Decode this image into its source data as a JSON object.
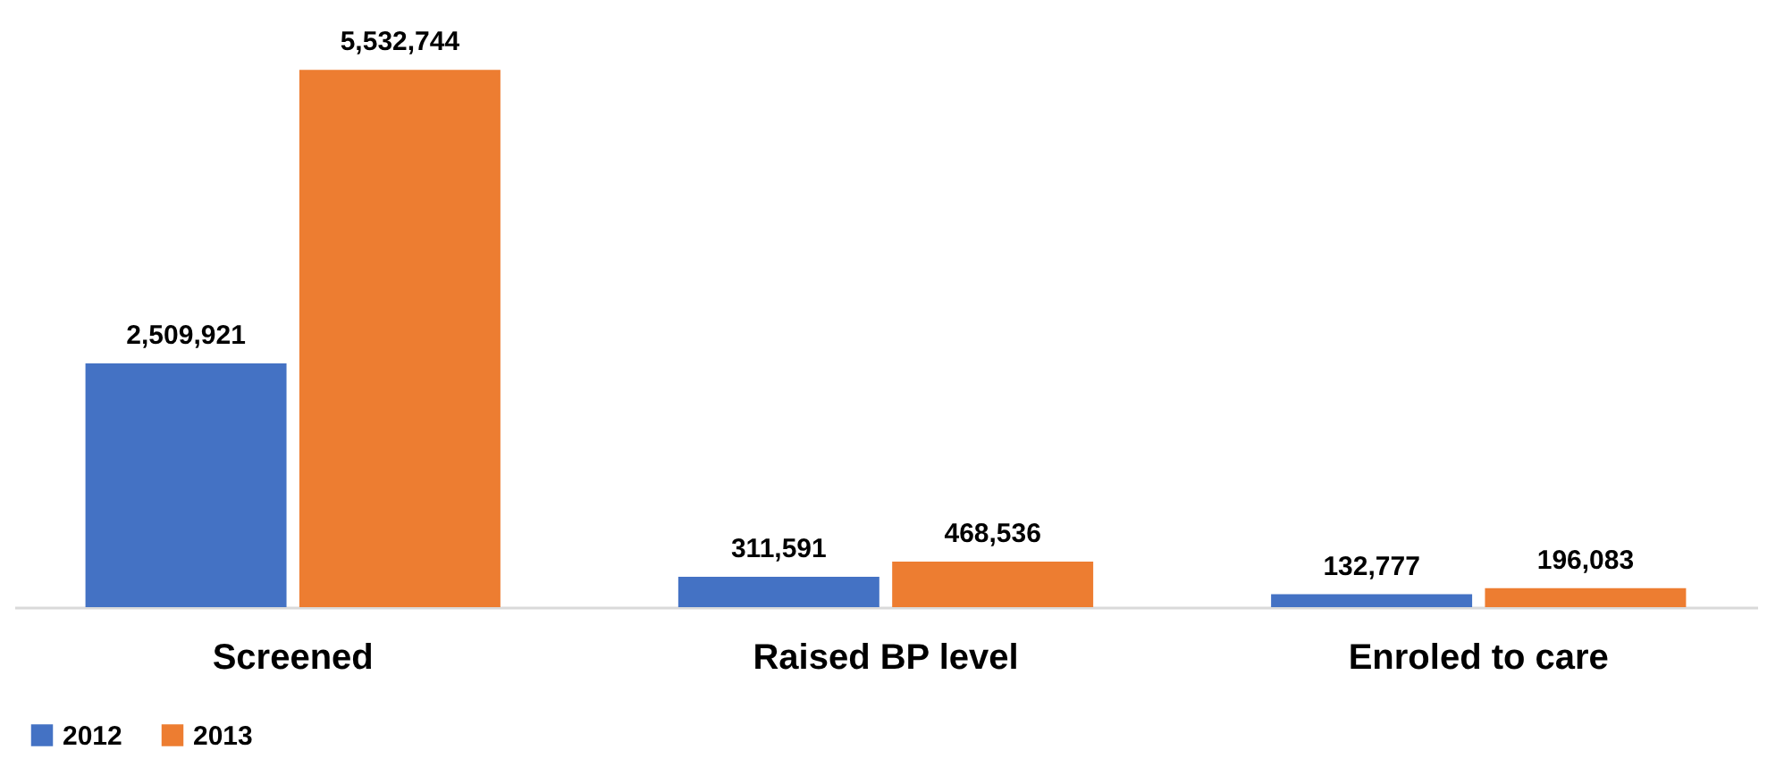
{
  "chart_data": {
    "type": "bar",
    "categories": [
      "Screened",
      "Raised BP level",
      "Enroled to care"
    ],
    "series": [
      {
        "name": "2012",
        "color": "#4472c4",
        "values": [
          2509921,
          311591,
          132777
        ],
        "value_labels": [
          "2,509,921",
          "311,591",
          "132,777"
        ]
      },
      {
        "name": "2013",
        "color": "#ed7d31",
        "values": [
          5532744,
          468536,
          196083
        ],
        "value_labels": [
          "5,532,744",
          "468,536",
          "196,083"
        ]
      }
    ],
    "legend": "bottom",
    "grid": false
  }
}
